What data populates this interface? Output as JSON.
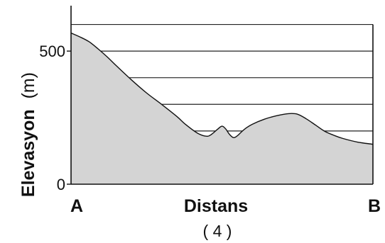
{
  "chart_data": {
    "type": "area",
    "ylabel_bold": "Elevasyon",
    "ylabel_unit": "(m)",
    "xlabel": "Distans",
    "x_start_label": "A",
    "x_end_label": "B",
    "caption": "( 4 )",
    "ylim": [
      0,
      660
    ],
    "xlim": [
      0,
      100
    ],
    "y_tick_labels": [
      {
        "value": 500,
        "label": "500"
      },
      {
        "value": 0,
        "label": "0"
      }
    ],
    "gridlines_y": [
      100,
      200,
      300,
      400,
      500,
      600
    ],
    "fill_color": "#d4d4d4",
    "line_color": "#111111",
    "series": [
      {
        "x": [
          0,
          3,
          6,
          9,
          12,
          15,
          20,
          25,
          30,
          35,
          38,
          42,
          45,
          46.5,
          48.5,
          50,
          51.2,
          52.5,
          53.8,
          55,
          56.5,
          58,
          60,
          64,
          68,
          72,
          75,
          78,
          81,
          84,
          87,
          90,
          95,
          100
        ],
        "y": [
          568,
          553,
          535,
          508,
          478,
          445,
          392,
          343,
          300,
          255,
          224,
          191,
          180,
          187,
          206,
          218,
          208,
          187,
          175,
          181,
          197,
          211,
          225,
          244,
          257,
          265,
          263,
          245,
          222,
          199,
          184,
          172,
          158,
          150
        ]
      }
    ]
  }
}
